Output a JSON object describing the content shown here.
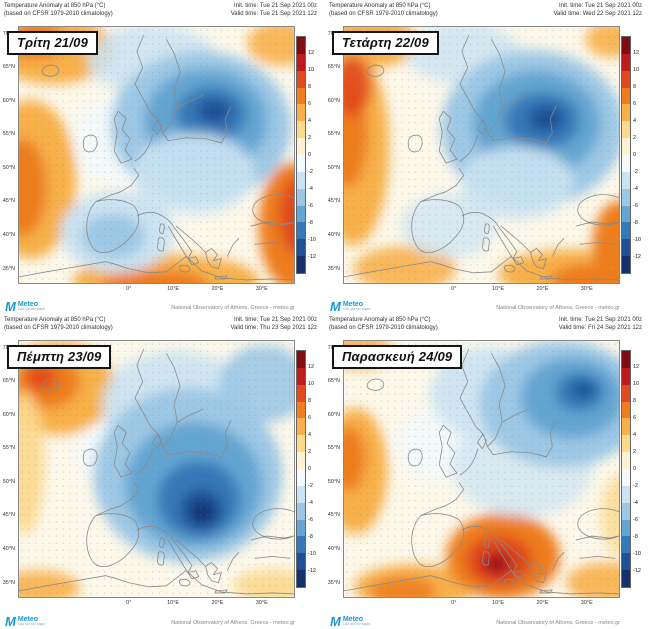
{
  "colorbar": {
    "ticks": [
      "12",
      "10",
      "8",
      "6",
      "4",
      "2",
      "0",
      "-2",
      "-4",
      "-6",
      "-8",
      "-10",
      "-12"
    ],
    "colors": [
      "#7f0d12",
      "#bf1b1c",
      "#e1491f",
      "#ee7d1f",
      "#f8b04a",
      "#fcd98d",
      "#fdf3d2",
      "#f3f9fc",
      "#cbe3f2",
      "#9dc8e5",
      "#64a5d1",
      "#3678b8",
      "#1d5096",
      "#15306a"
    ]
  },
  "axes": {
    "lat_labels": [
      "70°N",
      "65°N",
      "60°N",
      "55°N",
      "50°N",
      "45°N",
      "40°N",
      "35°N"
    ],
    "lon_labels": [
      "0°",
      "10°E",
      "20°E",
      "30°E"
    ]
  },
  "branding": {
    "logo_text": "Meteo",
    "logo_tagline": "Όλα για τον καιρό",
    "attribution": "National Observatory of Athens, Greece - meteo.gr"
  },
  "panels": [
    {
      "title_line1": "Temperature Anomaly at 850 hPa (°C)",
      "title_line2": "(based on CFSR 1979-2010 climatology)",
      "init_time": "Init. time: Tue 21 Sep 2021 00z",
      "valid_time": "Valid time: Tue 21 Sep 2021 12z",
      "day_label": "Τρίτη 21/09"
    },
    {
      "title_line1": "Temperature Anomaly at 850 hPa (°C)",
      "title_line2": "(based on CFSR 1979-2010 climatology)",
      "init_time": "Init. time: Tue 21 Sep 2021 00z",
      "valid_time": "Valid time: Wed 22 Sep 2021 12z",
      "day_label": "Τετάρτη 22/09"
    },
    {
      "title_line1": "Temperature Anomaly at 850 hPa (°C)",
      "title_line2": "(based on CFSR 1979-2010 climatology)",
      "init_time": "Init. time: Tue 21 Sep 2021 00z",
      "valid_time": "Valid time: Thu 23 Sep 2021 12z",
      "day_label": "Πέμπτη 23/09"
    },
    {
      "title_line1": "Temperature Anomaly at 850 hPa (°C)",
      "title_line2": "(based on CFSR 1979-2010 climatology)",
      "init_time": "Init. time: Tue 21 Sep 2021 00z",
      "valid_time": "Valid time: Fri 24 Sep 2021 12z",
      "day_label": "Παρασκευή 24/09"
    }
  ]
}
